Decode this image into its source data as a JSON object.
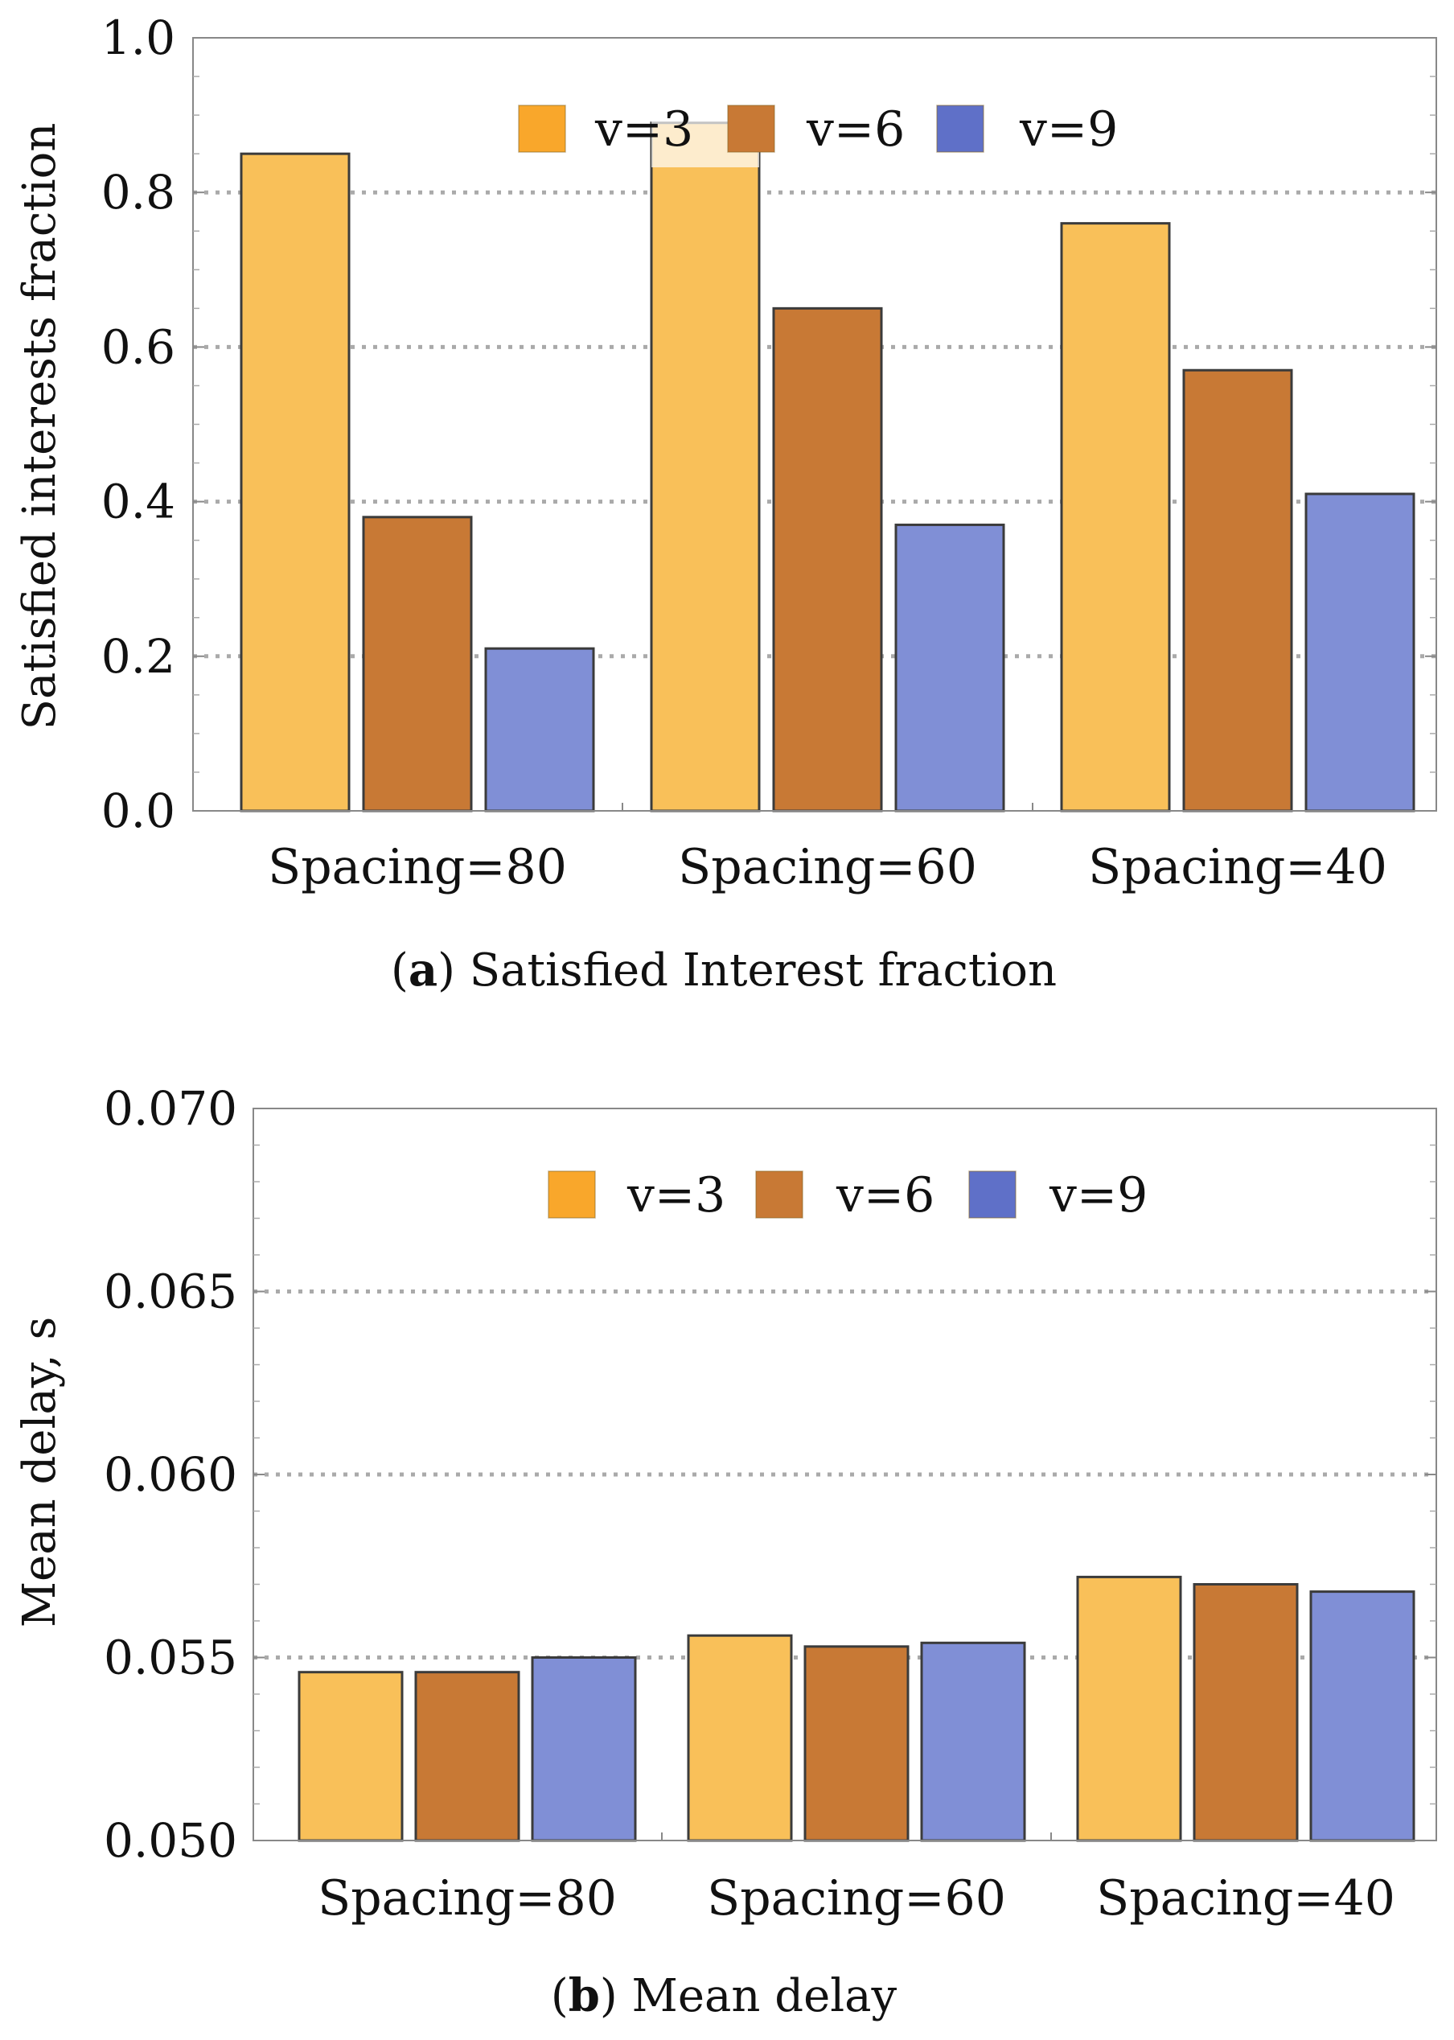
{
  "figure": {
    "series_colors": {
      "v=3": {
        "fill": "#F9C059",
        "swatch": "#F9A72B"
      },
      "v=6": {
        "fill": "#C87935",
        "swatch": "#C87935"
      },
      "v=9": {
        "fill": "#808FD6",
        "swatch": "#5F70C8"
      }
    },
    "bar_outline": "#3B3B3B",
    "grid_color": "#AAAAAA"
  },
  "chart_data": [
    {
      "type": "bar",
      "title": "",
      "caption_letter": "a",
      "caption_text": "Satisfied Interest fraction",
      "xlabel": "",
      "ylabel": "Satisfied interests fraction",
      "categories": [
        "Spacing=80",
        "Spacing=60",
        "Spacing=40"
      ],
      "series": [
        {
          "name": "v=3",
          "values": [
            0.85,
            0.89,
            0.76
          ]
        },
        {
          "name": "v=6",
          "values": [
            0.38,
            0.65,
            0.57
          ]
        },
        {
          "name": "v=9",
          "values": [
            0.21,
            0.37,
            0.41
          ]
        }
      ],
      "ylim": [
        0.0,
        1.0
      ],
      "yticks": [
        0.0,
        0.2,
        0.4,
        0.6,
        0.8,
        1.0
      ],
      "ytick_labels": [
        "0.0",
        "0.2",
        "0.4",
        "0.6",
        "0.8",
        "1.0"
      ],
      "gridlines_at": [
        0.2,
        0.4,
        0.6,
        0.8
      ],
      "legend_position": "top-center",
      "legend": [
        "v=3",
        "v=6",
        "v=9"
      ]
    },
    {
      "type": "bar",
      "title": "",
      "caption_letter": "b",
      "caption_text": "Mean delay",
      "xlabel": "",
      "ylabel": "Mean delay, s",
      "categories": [
        "Spacing=80",
        "Spacing=60",
        "Spacing=40"
      ],
      "series": [
        {
          "name": "v=3",
          "values": [
            0.0546,
            0.0556,
            0.0572
          ]
        },
        {
          "name": "v=6",
          "values": [
            0.0546,
            0.0553,
            0.057
          ]
        },
        {
          "name": "v=9",
          "values": [
            0.055,
            0.0554,
            0.0568
          ]
        }
      ],
      "ylim": [
        0.05,
        0.07
      ],
      "yticks": [
        0.05,
        0.055,
        0.06,
        0.065,
        0.07
      ],
      "ytick_labels": [
        "0.050",
        "0.055",
        "0.060",
        "0.065",
        "0.070"
      ],
      "gridlines_at": [
        0.055,
        0.06,
        0.065
      ],
      "legend_position": "top-center",
      "legend": [
        "v=3",
        "v=6",
        "v=9"
      ]
    }
  ]
}
